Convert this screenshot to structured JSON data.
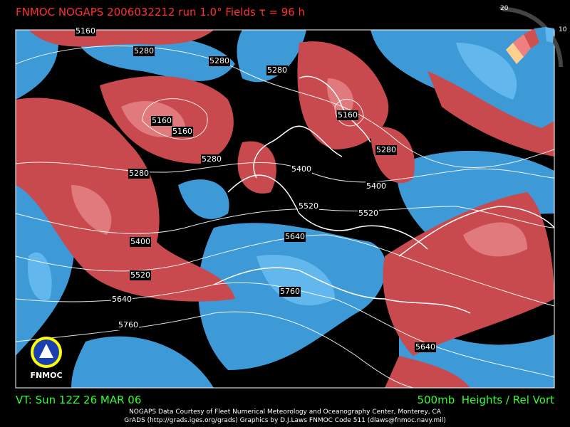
{
  "header": {
    "title": "FNMOC NOGAPS 2006032212 run 1.0° Fields τ = 96 h"
  },
  "colorbar": {
    "labels": [
      "20",
      "10"
    ]
  },
  "logo": {
    "label": "FNMOC"
  },
  "contours": {
    "labels": [
      5160,
      5280,
      5280,
      5280,
      5160,
      5160,
      5160,
      5280,
      5280,
      5280,
      5400,
      5400,
      5520,
      5520,
      5640,
      5400,
      5520,
      5640,
      5760,
      5760,
      5640
    ]
  },
  "footer": {
    "valid_time": "VT: Sun 12Z 26 MAR 06",
    "field": "500mb  Heights / Rel Vort",
    "credits": [
      "NOGAPS Data Courtesy of Fleet Numerical Meteorology and Oceanography Center, Monterey, CA",
      "GrADS (http://grads.iges.org/grads) Graphics by D.J.Laws FNMOC Code 511 (dlaws@fnmoc.navy.mil)"
    ]
  }
}
